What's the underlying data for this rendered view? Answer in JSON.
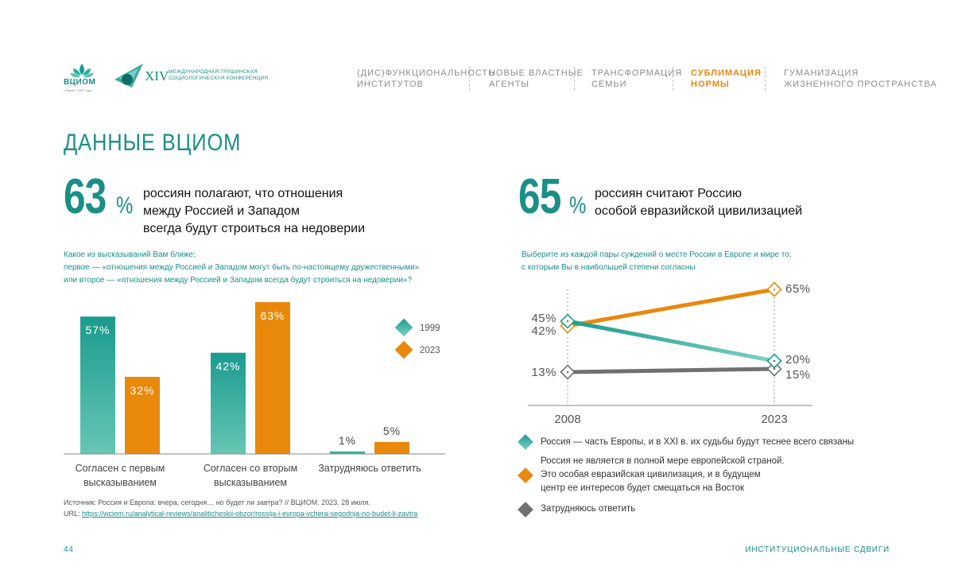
{
  "header": {
    "logo_wciom_text": "ВЦИОМ",
    "logo_wciom_sub": "с Вами с 1987 года",
    "conference_numeral": "XIV",
    "conference_line1": "Международная Грушинская",
    "conference_line2": "социологическая конференция",
    "nav": [
      {
        "line1": "(Дис)функциональность",
        "line2": "институтов",
        "active": false
      },
      {
        "line1": "Новые властные",
        "line2": "агенты",
        "active": false
      },
      {
        "line1": "Трансформация",
        "line2": "семьи",
        "active": false
      },
      {
        "line1": "Сублимация",
        "line2": "нормы",
        "active": true
      },
      {
        "line1": "Гуманизация",
        "line2": "жизненного пространства",
        "active": false
      }
    ]
  },
  "page_title": "ДАННЫЕ ВЦИОМ",
  "left": {
    "big_number": "63",
    "percent_sign": "%",
    "statement_line1": "россиян полагают, что отношения",
    "statement_line2": "между Россией и Западом",
    "statement_line3": "всегда будут строиться на недоверии",
    "question_line1": "Какое из высказываний Вам ближе:",
    "question_line2": "первое — «отношения между Россией и Западом могут быть по-настоящему дружественными»",
    "question_line3": "или второе — «отношения между Россией и Западом всегда будут строиться на недоверии»?",
    "source_line1": "Источник: Россия и Европа: вчера, сегодня… но будет ли завтра? // ВЦИОМ. 2023. 28 июля.",
    "source_url_prefix": "URL: ",
    "source_url": "https://wciom.ru/analytical-reviews/analiticheskii-obzor/rossija-i-evropa-vchera-segodnja-no-budet-li-zavtra"
  },
  "right": {
    "big_number": "65",
    "percent_sign": "%",
    "statement_line1": "россиян считают Россию",
    "statement_line2": "особой евразийской цивилизацией",
    "question_line1": "Выберите из каждой пары суждений о месте России в Европе и мире то,",
    "question_line2": "с которым Вы в наибольшей степени согласны",
    "legend": [
      {
        "lines": [
          "Россия — часть Европы, и в XXI в. их судьбы будут теснее всего связаны"
        ],
        "color": "#1a9b8e"
      },
      {
        "lines": [
          "Россия не является в полной мере европейской страной.",
          "Это особая евразийская цивилизация, и в будущем",
          "центр ее интересов будет смещаться на Восток"
        ],
        "color": "#e8890c"
      },
      {
        "lines": [
          "Затрудняюсь ответить"
        ],
        "color": "#707070"
      }
    ]
  },
  "footer": {
    "page_number": "44",
    "section": "ИНСТИТУЦИОНАЛЬНЫЕ СДВИГИ"
  },
  "colors": {
    "teal": "#1a9b8e",
    "teal_dark": "#1a8f86",
    "orange": "#e8890c",
    "gray": "#707070"
  },
  "chart_data": [
    {
      "type": "bar",
      "categories": [
        [
          "Согласен с первым",
          "высказыванием"
        ],
        [
          "Согласен со вторым",
          "высказыванием"
        ],
        [
          "Затрудняюсь ответить"
        ]
      ],
      "series": [
        {
          "name": "1999",
          "values": [
            57,
            42,
            1
          ],
          "labels": [
            "57%",
            "42%",
            "1%"
          ],
          "color": "#1a9b8e"
        },
        {
          "name": "2023",
          "values": [
            32,
            63,
            5
          ],
          "labels": [
            "32%",
            "63%",
            "5%"
          ],
          "color": "#e8890c"
        }
      ],
      "ylim": [
        0,
        63
      ]
    },
    {
      "type": "line",
      "x": [
        "2008",
        "2023"
      ],
      "series": [
        {
          "values": [
            45,
            20
          ],
          "labels": [
            "45%",
            "20%"
          ],
          "color": "#1a9b8e"
        },
        {
          "values": [
            42,
            65
          ],
          "labels": [
            "42%",
            "65%"
          ],
          "color": "#e8890c"
        },
        {
          "values": [
            13,
            15
          ],
          "labels": [
            "13%",
            "15%"
          ],
          "color": "#707070"
        }
      ],
      "ylim": [
        13,
        65
      ]
    }
  ]
}
